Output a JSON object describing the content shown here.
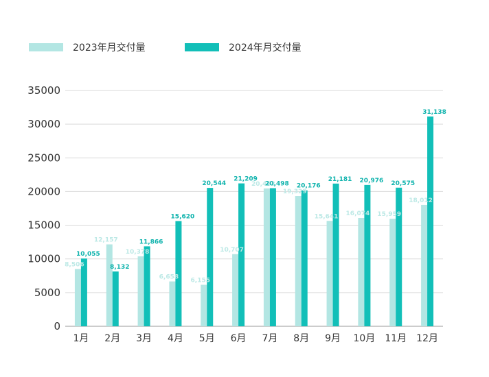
{
  "chart_data": {
    "type": "bar",
    "title": "",
    "xlabel": "",
    "ylabel": "",
    "categories": [
      "1月",
      "2月",
      "3月",
      "4月",
      "5月",
      "6月",
      "7月",
      "8月",
      "9月",
      "10月",
      "11月",
      "12月"
    ],
    "series": [
      {
        "name": "2023年月交付量",
        "color": "#b3e6e3",
        "values": [
          8506,
          12157,
          10378,
          6658,
          6155,
          10707,
          20463,
          19329,
          15641,
          16074,
          15959,
          18012
        ],
        "labels": [
          "8,506",
          "12,157",
          "10,378",
          "6,658",
          "6,155",
          "10,707",
          "20,463",
          "19,329",
          "15,641",
          "16,074",
          "15,959",
          "18,012"
        ]
      },
      {
        "name": "2024年月交付量",
        "color": "#12bfb8",
        "values": [
          10055,
          8132,
          11866,
          15620,
          20544,
          21209,
          20498,
          20176,
          21181,
          20976,
          20575,
          31138
        ],
        "labels": [
          "10,055",
          "8,132",
          "11,866",
          "15,620",
          "20,544",
          "21,209",
          "20,498",
          "20,176",
          "21,181",
          "20,976",
          "20,575",
          "31,138"
        ]
      }
    ],
    "yticks": [
      "0",
      "5000",
      "10000",
      "15000",
      "20000",
      "25000",
      "30000",
      "35000"
    ],
    "ylim": [
      0,
      35000
    ],
    "grid": true,
    "legend_position": "top-left"
  }
}
